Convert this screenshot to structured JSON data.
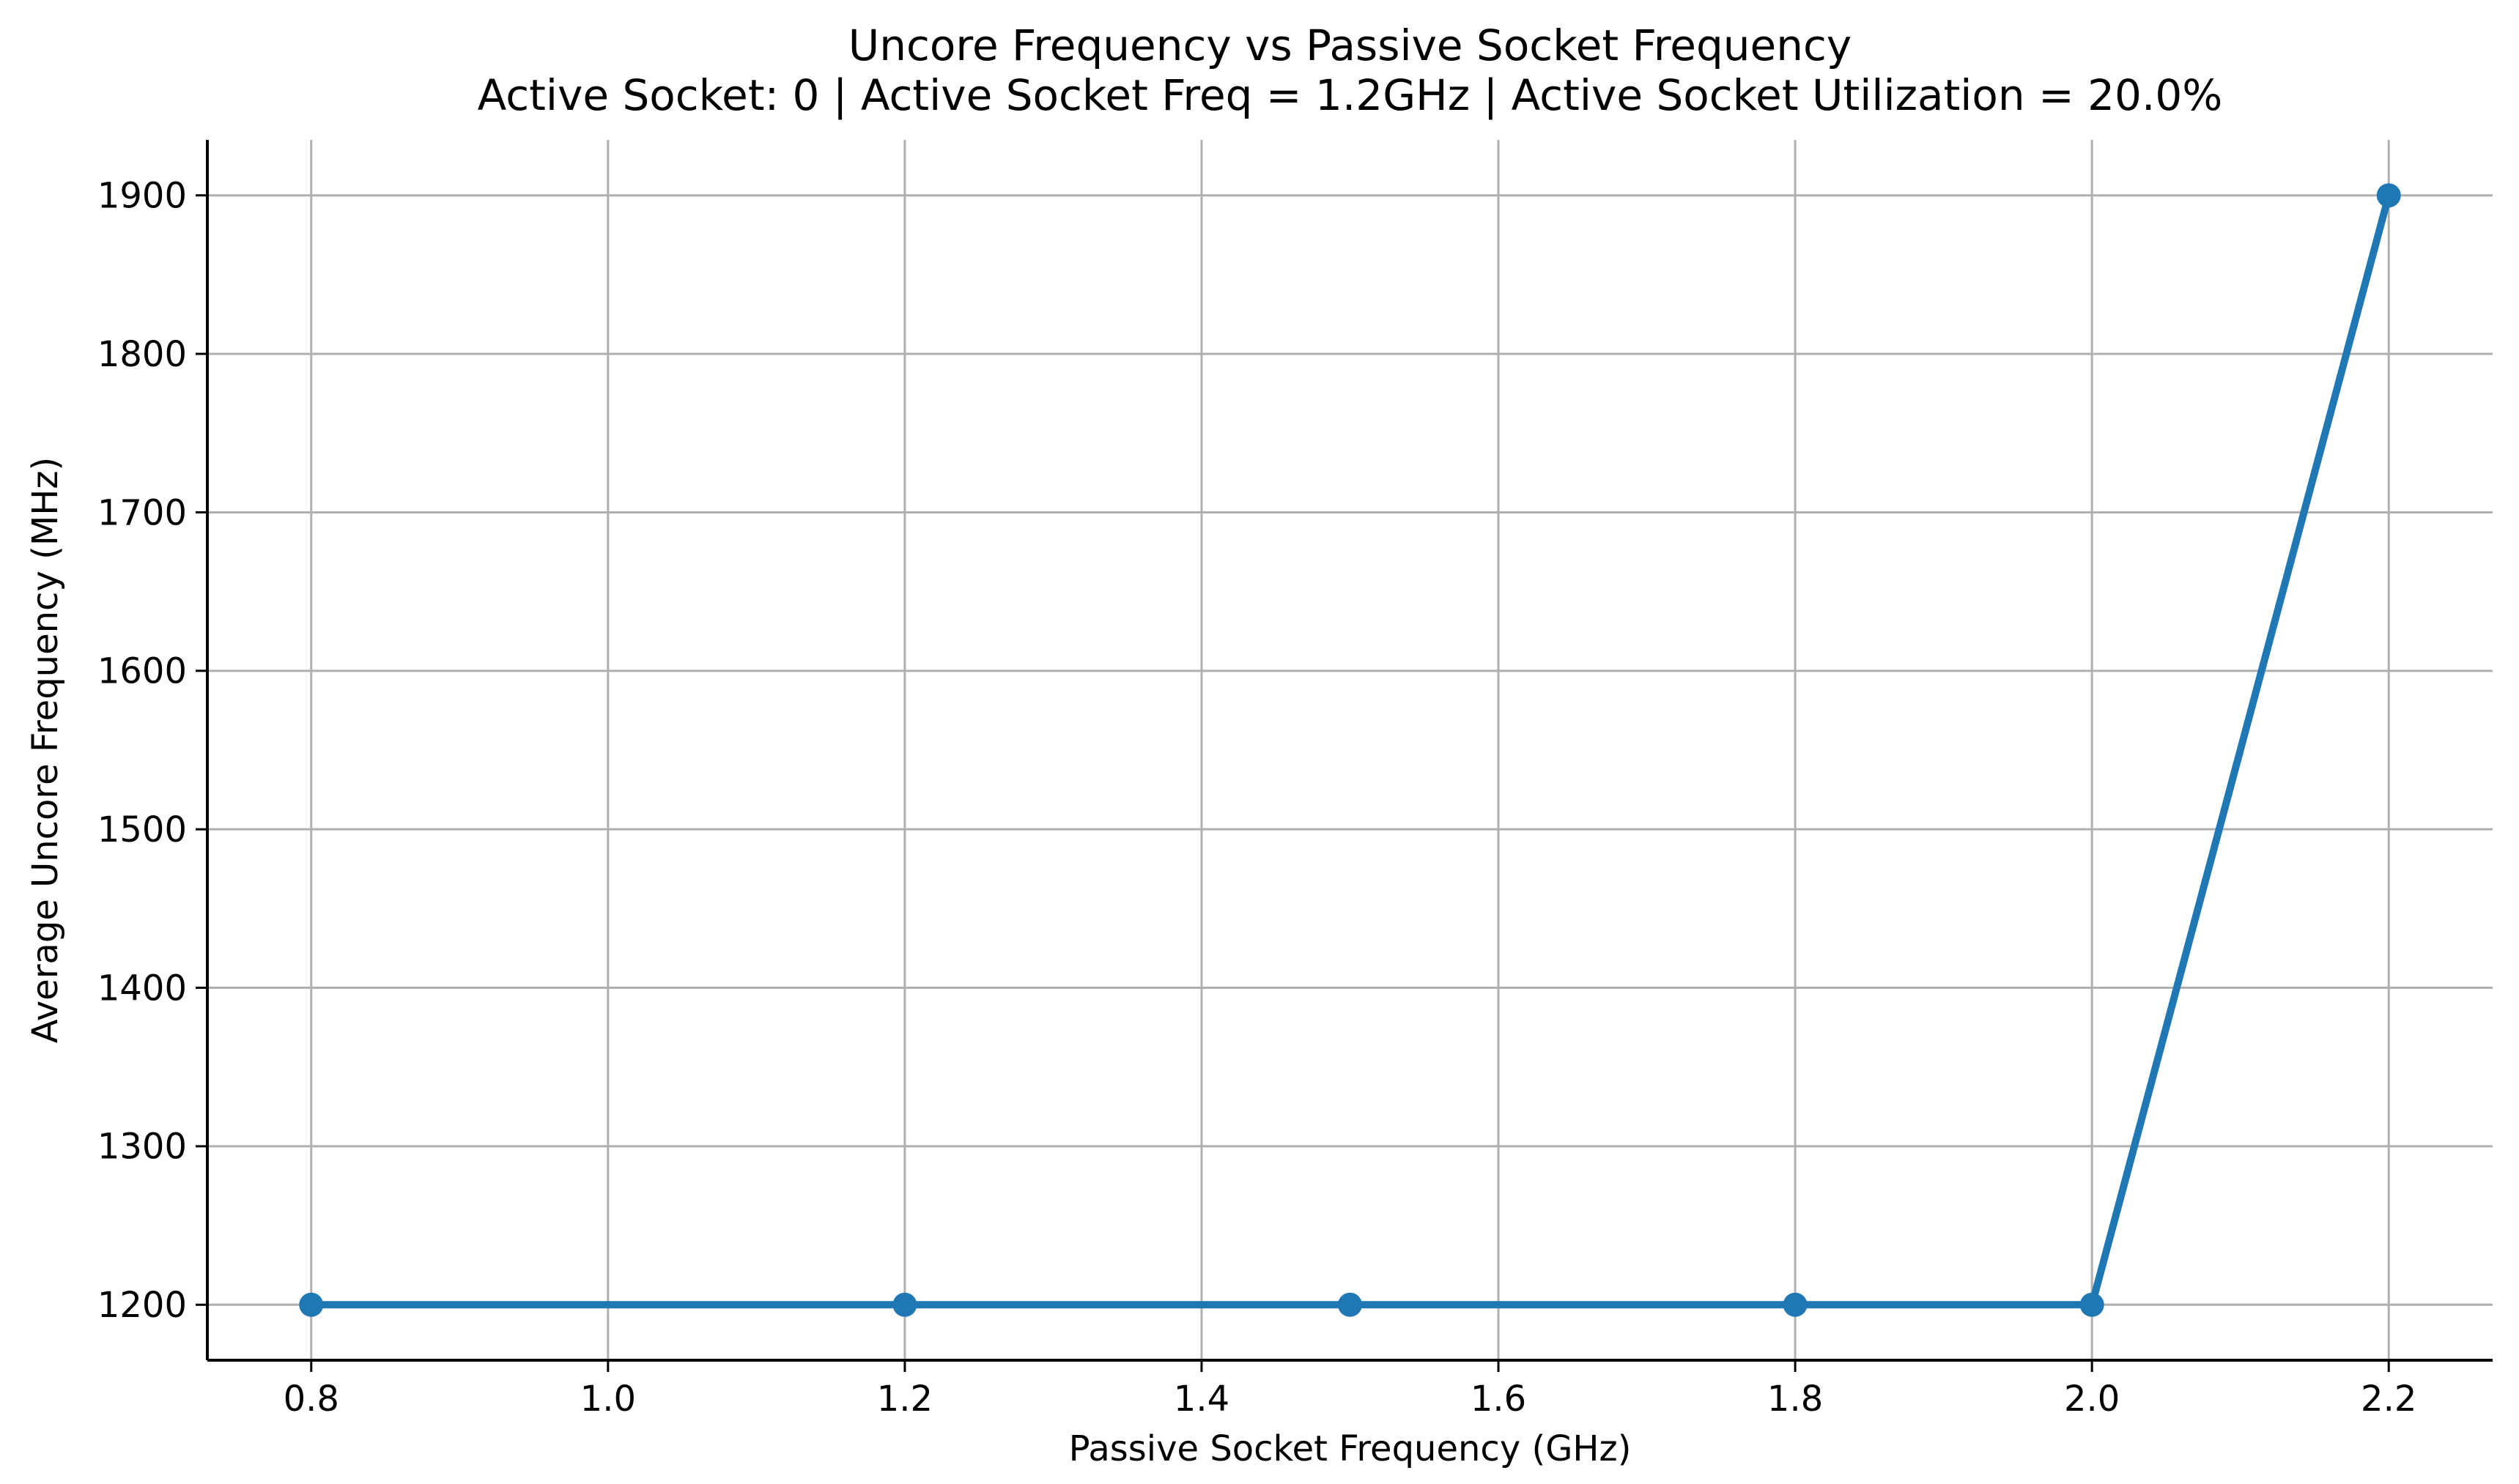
{
  "chart_data": {
    "type": "line",
    "title": "Uncore Frequency vs Passive Socket Frequency",
    "subtitle": "Active Socket: 0 | Active Socket Freq = 1.2GHz | Active Socket Utilization = 20.0%",
    "xlabel": "Passive Socket Frequency (GHz)",
    "ylabel": "Average Uncore Frequency (MHz)",
    "x": [
      0.8,
      1.2,
      1.5,
      1.8,
      2.0,
      2.2
    ],
    "y": [
      1200,
      1200,
      1200,
      1200,
      1200,
      1900
    ],
    "xlim": [
      0.73,
      2.27
    ],
    "ylim": [
      1165,
      1935
    ],
    "xticks": [
      0.8,
      1.0,
      1.2,
      1.4,
      1.6,
      1.8,
      2.0,
      2.2
    ],
    "xtick_labels": [
      "0.8",
      "1.0",
      "1.2",
      "1.4",
      "1.6",
      "1.8",
      "2.0",
      "2.2"
    ],
    "yticks": [
      1200,
      1300,
      1400,
      1500,
      1600,
      1700,
      1800,
      1900
    ],
    "ytick_labels": [
      "1200",
      "1300",
      "1400",
      "1500",
      "1600",
      "1700",
      "1800",
      "1900"
    ],
    "grid": true,
    "legend_position": "none",
    "marker": "circle",
    "line_color": "#1f77b4",
    "grid_color": "#b0b0b0",
    "axis_color": "#000000",
    "text_color": "#000000"
  }
}
